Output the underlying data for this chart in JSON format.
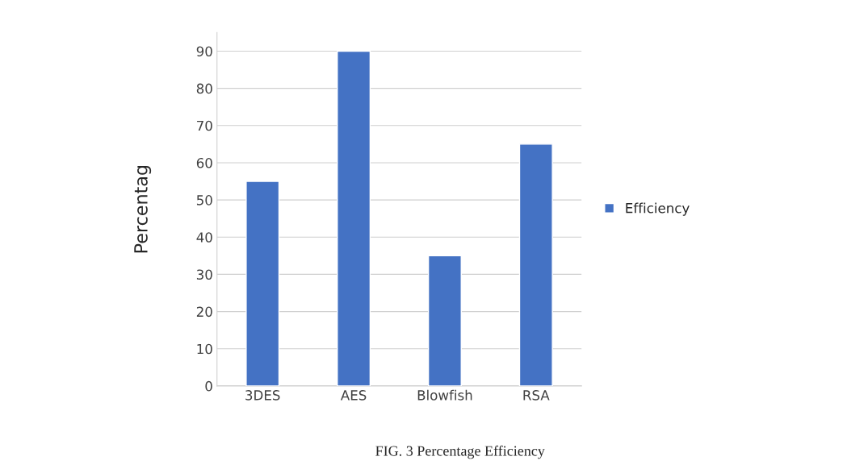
{
  "chart_data": {
    "type": "bar",
    "ylabel": "Percentag",
    "categories": [
      "3DES",
      "AES",
      "Blowfish",
      "RSA"
    ],
    "series": [
      {
        "name": "Efficiency",
        "color": "#4472c4",
        "values": [
          55,
          90,
          35,
          65
        ]
      }
    ],
    "ylim": [
      0,
      95
    ],
    "yticks": [
      0,
      10,
      20,
      30,
      40,
      50,
      60,
      70,
      80,
      90
    ],
    "grid": "y",
    "legend": "right",
    "annotations": [
      "FIG. 3 Percentage Efficiency"
    ]
  }
}
